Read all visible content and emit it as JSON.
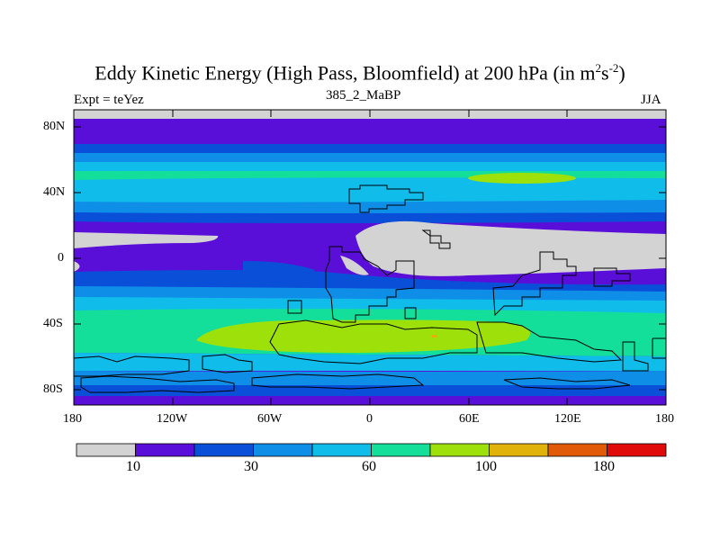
{
  "title": {
    "main": "Eddy Kinetic Energy (High Pass, Bloomfield) at 200 hPa (in m",
    "sup1": "2",
    "mid": "s",
    "sup2": "-2",
    "end": ")"
  },
  "left_label": "Expt = teYez",
  "center_label": "385_2_MaBP",
  "right_label": "JJA",
  "lat_ticks": [
    "80N",
    "40N",
    "0",
    "40S",
    "80S"
  ],
  "lon_ticks": [
    "180",
    "120W",
    "60W",
    "0",
    "60E",
    "120E",
    "180"
  ],
  "colorbar": {
    "colors": [
      "#d3d3d3",
      "#5a0fd8",
      "#0a4fd8",
      "#0f8ee8",
      "#10bcea",
      "#14df9a",
      "#9ee00a",
      "#e0b20a",
      "#e05a0a",
      "#e00a0a"
    ],
    "labels": [
      "10",
      "30",
      "60",
      "100",
      "180"
    ]
  },
  "legend_colors": {
    "gray": "#d3d3d3",
    "purple": "#5a0fd8",
    "blue": "#0a4fd8",
    "mid_blue": "#0f8ee8",
    "light_blue": "#10bcea",
    "green": "#14df9a",
    "yellow_green": "#9ee00a",
    "orange": "#e0b20a"
  }
}
